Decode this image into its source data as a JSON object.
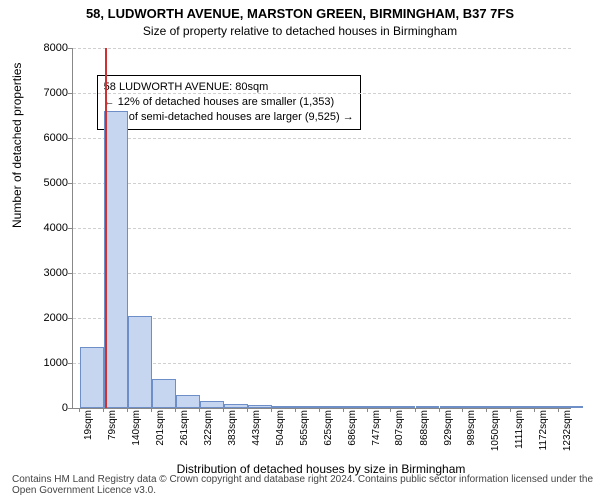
{
  "chart": {
    "type": "histogram",
    "title": "58, LUDWORTH AVENUE, MARSTON GREEN, BIRMINGHAM, B37 7FS",
    "subtitle": "Size of property relative to detached houses in Birmingham",
    "xlabel": "Distribution of detached houses by size in Birmingham",
    "ylabel": "Number of detached properties",
    "background_color": "#ffffff",
    "grid_color": "#d0d0d0",
    "axis_color": "#888888",
    "ylim": [
      0,
      8000
    ],
    "ytick_step": 1000,
    "ytick_labels": [
      "0",
      "1000",
      "2000",
      "3000",
      "4000",
      "5000",
      "6000",
      "7000",
      "8000"
    ],
    "x_min": 0,
    "x_max": 1262,
    "x_ticks": [
      19,
      79,
      140,
      201,
      261,
      322,
      383,
      443,
      504,
      565,
      625,
      686,
      747,
      807,
      868,
      929,
      989,
      1050,
      1111,
      1172,
      1232
    ],
    "x_tick_labels": [
      "19sqm",
      "79sqm",
      "140sqm",
      "201sqm",
      "261sqm",
      "322sqm",
      "383sqm",
      "443sqm",
      "504sqm",
      "565sqm",
      "625sqm",
      "686sqm",
      "747sqm",
      "807sqm",
      "868sqm",
      "929sqm",
      "989sqm",
      "1050sqm",
      "1111sqm",
      "1172sqm",
      "1232sqm"
    ],
    "bar_fill": "#c7d6f0",
    "bar_stroke": "#6e8ec8",
    "bar_width_sqm": 60.6,
    "bins": [
      {
        "x": 19,
        "count": 1350
      },
      {
        "x": 79,
        "count": 6600
      },
      {
        "x": 140,
        "count": 2050
      },
      {
        "x": 201,
        "count": 650
      },
      {
        "x": 261,
        "count": 280
      },
      {
        "x": 322,
        "count": 150
      },
      {
        "x": 383,
        "count": 90
      },
      {
        "x": 443,
        "count": 70
      },
      {
        "x": 504,
        "count": 40
      },
      {
        "x": 565,
        "count": 30
      },
      {
        "x": 625,
        "count": 20
      },
      {
        "x": 686,
        "count": 14
      },
      {
        "x": 747,
        "count": 10
      },
      {
        "x": 807,
        "count": 8
      },
      {
        "x": 868,
        "count": 6
      },
      {
        "x": 929,
        "count": 5
      },
      {
        "x": 989,
        "count": 4
      },
      {
        "x": 1050,
        "count": 3
      },
      {
        "x": 1111,
        "count": 2
      },
      {
        "x": 1172,
        "count": 2
      },
      {
        "x": 1232,
        "count": 1
      }
    ],
    "marker": {
      "x": 80,
      "color": "#d03030"
    },
    "infobox": {
      "line1": "58 LUDWORTH AVENUE: 80sqm",
      "line2": "← 12% of detached houses are smaller (1,353)",
      "line3": "88% of semi-detached houses are larger (9,525) →",
      "left_sqm": 60,
      "top_y": 7400
    },
    "footer": "Contains HM Land Registry data © Crown copyright and database right 2024. Contains public sector information licensed under the Open Government Licence v3.0."
  }
}
